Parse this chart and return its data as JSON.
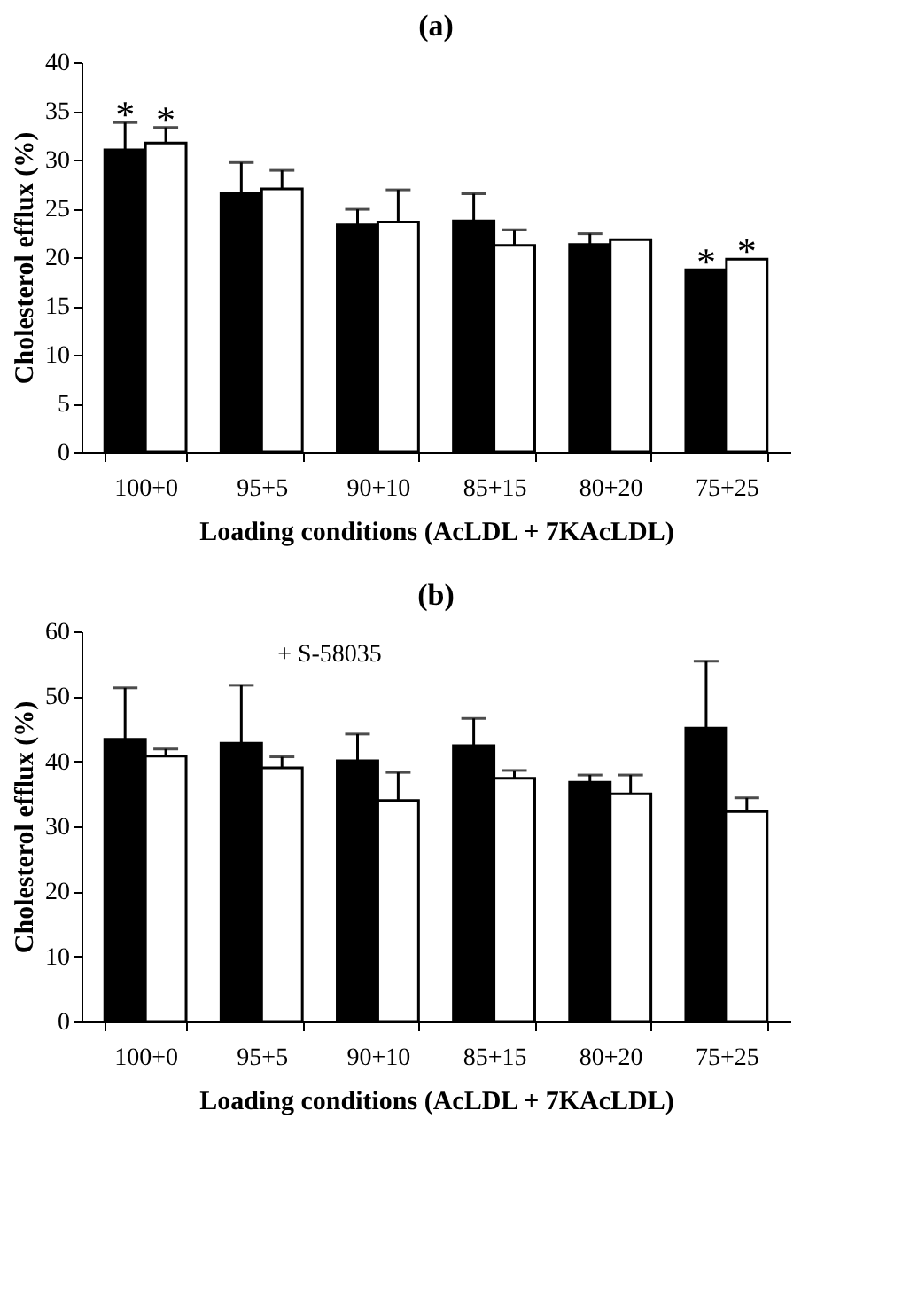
{
  "chart_data": [
    {
      "type": "bar",
      "title": "(a)",
      "xlabel": "Loading conditions (AcLDL + 7KAcLDL)",
      "ylabel": "Cholesterol efflux (%)",
      "categories": [
        "100+0",
        "95+5",
        "90+10",
        "85+15",
        "80+20",
        "75+25"
      ],
      "series": [
        {
          "color": "#000000",
          "values": [
            31,
            26.6,
            23.3,
            23.7,
            21.3,
            18.7
          ],
          "errors": [
            [
              31,
              33.8
            ],
            [
              26.6,
              29.7
            ],
            [
              23.3,
              24.9
            ],
            [
              23.7,
              26.5
            ],
            [
              21.3,
              22.4
            ],
            null
          ]
        },
        {
          "color": "#ffffff",
          "values": [
            31.7,
            27,
            23.6,
            21.2,
            21.8,
            19.8
          ],
          "errors": [
            [
              31.7,
              33.3
            ],
            [
              27,
              28.9
            ],
            [
              23.6,
              26.9
            ],
            [
              21.2,
              22.8
            ],
            null,
            null
          ]
        }
      ],
      "annotations": [
        {
          "text": "*",
          "x": "100+0",
          "y": 31
        },
        {
          "text": "*",
          "x": "100+0",
          "y": 31.7
        },
        {
          "text": "*",
          "x": "75+25",
          "y": 18.7
        },
        {
          "text": "*",
          "x": "75+25",
          "y": 19.8
        }
      ],
      "ylim": [
        0,
        40
      ],
      "yticks": [
        0,
        5,
        10,
        15,
        20,
        25,
        30,
        35,
        40
      ],
      "grid": false,
      "legend": false
    },
    {
      "type": "bar",
      "title": "(b)",
      "xlabel": "Loading conditions (AcLDL + 7KAcLDL)",
      "ylabel": "Cholesterol efflux (%)",
      "categories": [
        "100+0",
        "95+5",
        "90+10",
        "85+15",
        "80+20",
        "75+25"
      ],
      "series": [
        {
          "color": "#000000",
          "values": [
            43.4,
            42.8,
            40.1,
            42.4,
            36.8,
            45.1
          ],
          "errors": [
            [
              43.4,
              51.3
            ],
            [
              42.8,
              51.7
            ],
            [
              40.1,
              44.2
            ],
            [
              42.4,
              46.6
            ],
            [
              36.8,
              37.9
            ],
            [
              45.1,
              55.4
            ]
          ]
        },
        {
          "color": "#ffffff",
          "values": [
            40.8,
            39,
            34,
            37.4,
            35,
            32.3
          ],
          "errors": [
            [
              40.8,
              41.9
            ],
            [
              39,
              40.7
            ],
            [
              34,
              38.3
            ],
            [
              37.4,
              38.6
            ],
            [
              35,
              37.9
            ],
            [
              32.3,
              34.4
            ]
          ]
        }
      ],
      "annotations": [
        "+ S-58035"
      ],
      "ylim": [
        0,
        60
      ],
      "yticks": [
        0,
        10,
        20,
        30,
        40,
        50,
        60
      ],
      "grid": false,
      "legend": false
    }
  ]
}
